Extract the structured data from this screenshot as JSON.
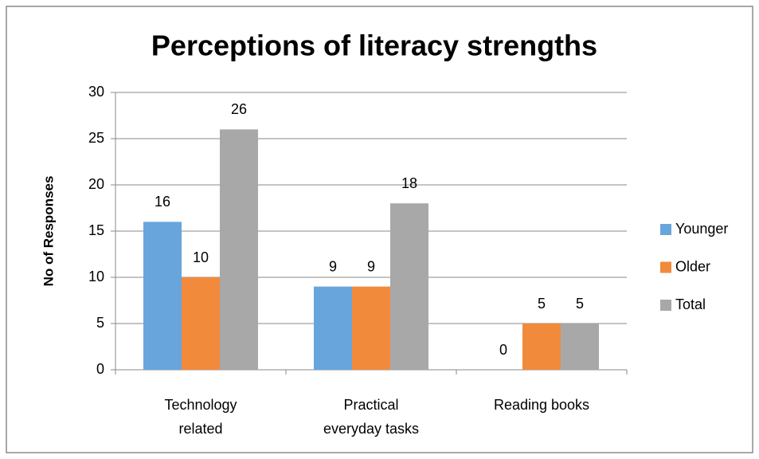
{
  "chart_data": {
    "type": "bar",
    "title": "Perceptions of literacy strengths",
    "y_label": "No of Responses",
    "categories": [
      "Technology related",
      "Practical everyday tasks",
      "Reading books"
    ],
    "series": [
      {
        "name": "Younger",
        "color": "#68a5dc",
        "values": [
          16,
          9,
          0
        ]
      },
      {
        "name": "Older",
        "color": "#f28a3c",
        "values": [
          10,
          9,
          5
        ]
      },
      {
        "name": "Total",
        "color": "#a8a8a8",
        "values": [
          26,
          18,
          5
        ]
      }
    ],
    "ylim": [
      0,
      30
    ],
    "yticks": [
      0,
      5,
      10,
      15,
      20,
      25,
      30
    ],
    "grid": true,
    "legend": "right"
  }
}
